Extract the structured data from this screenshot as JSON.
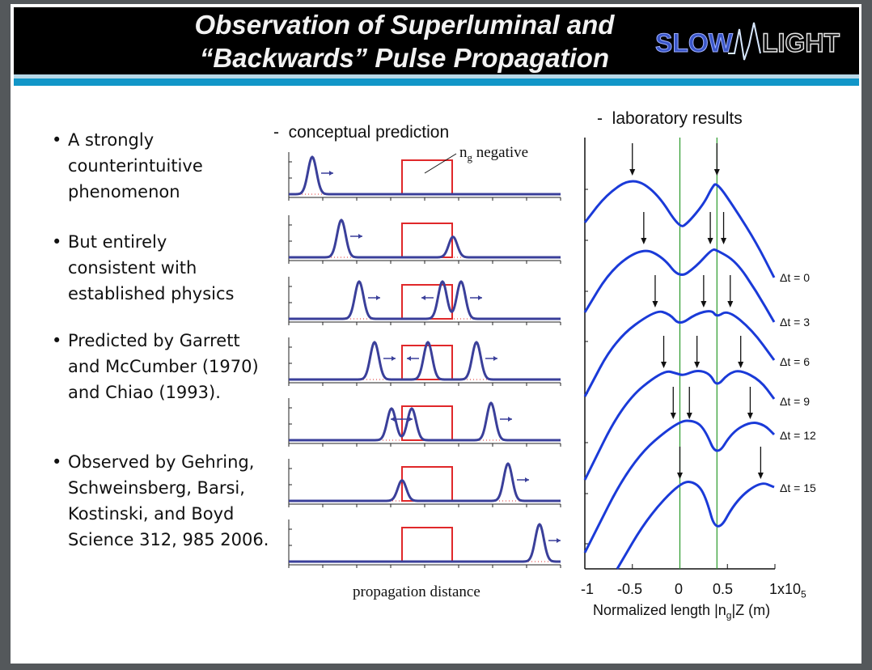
{
  "header": {
    "title_line1": "Observation of  Superluminal and",
    "title_line2": "“Backwards” Pulse Propagation",
    "logo_text": "SLOW LIGHT",
    "colors": {
      "banner": "#000000",
      "accent": "#1196c8",
      "logo_blue": "#3a56c8"
    }
  },
  "bullets": [
    {
      "dot": "•",
      "text": "A strongly\ncounterintuitive\nphenomenon"
    },
    {
      "dot": "•",
      "text": "But entirely\nconsistent with\nestablished physics"
    },
    {
      "dot": "•",
      "text": "Predicted by Garrett\nand McCumber (1970)\nand Chiao (1993)."
    },
    {
      "dot": "•",
      "text": "Observed by Gehring,\nSchweinsberg, Barsi,\nKostinski, and Boyd\nScience 312, 985 2006."
    }
  ],
  "conceptual": {
    "heading": "-  conceptual prediction",
    "annotation": "negative",
    "annotation_symbol": "n",
    "annotation_sub": "g",
    "xlabel": "propagation distance",
    "panel_count": 7,
    "colors": {
      "pulse": "#3a3f9a",
      "region": "#e0282a"
    }
  },
  "laboratory": {
    "heading": "-  laboratory results",
    "xlabel_prefix": "Normalized length |n",
    "xlabel_sub": "g",
    "xlabel_suffix": "|Z (m)",
    "xticks": [
      "-1",
      "-0.5",
      "0",
      "0.5",
      "1x10"
    ],
    "xtick_sub": "5",
    "xlim": [
      -1,
      1
    ],
    "green_lines": [
      0,
      0.39
    ],
    "curves": [
      {
        "label": "Δt = 0",
        "arrows": [
          -0.5,
          0.39
        ]
      },
      {
        "label": "Δt = 3",
        "arrows": [
          -0.38,
          0.32,
          0.46
        ]
      },
      {
        "label": "Δt = 6",
        "arrows": [
          -0.26,
          0.25,
          0.53
        ]
      },
      {
        "label": "Δt = 9",
        "arrows": [
          -0.17,
          0.18,
          0.64
        ]
      },
      {
        "label": "Δt = 12",
        "arrows": [
          -0.07,
          0.1,
          0.74
        ]
      },
      {
        "label": "Δt = 15",
        "arrows": [
          0,
          0.85
        ]
      }
    ],
    "colors": {
      "curve": "#1a3ad8",
      "marker_line": "#2a9a2a"
    }
  }
}
